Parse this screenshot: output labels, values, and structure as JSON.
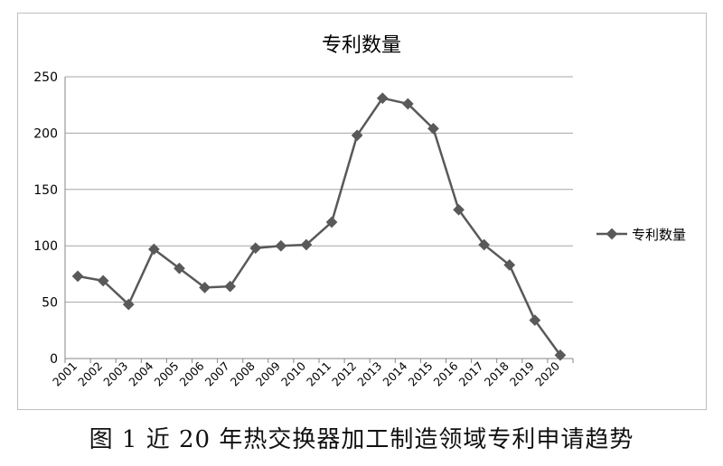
{
  "caption": "图 1 近 20 年热交换器加工制造领域专利申请趋势",
  "chart_data": {
    "type": "line",
    "title": "专利数量",
    "xlabel": "",
    "ylabel": "",
    "categories": [
      "2001",
      "2002",
      "2003",
      "2004",
      "2005",
      "2006",
      "2007",
      "2008",
      "2009",
      "2010",
      "2011",
      "2012",
      "2013",
      "2014",
      "2015",
      "2016",
      "2017",
      "2018",
      "2019",
      "2020"
    ],
    "series": [
      {
        "name": "专利数量",
        "values": [
          73,
          69,
          48,
          97,
          80,
          63,
          64,
          98,
          100,
          101,
          121,
          198,
          231,
          226,
          204,
          132,
          101,
          83,
          34,
          3
        ]
      }
    ],
    "ylim": [
      0,
      250
    ],
    "yticks": [
      "0",
      "50",
      "100",
      "150",
      "200",
      "250"
    ],
    "grid": "horizontal",
    "legend": "right",
    "colors": {
      "line": "#595959",
      "grid": "#a6a6a6",
      "axis": "#868686"
    }
  }
}
